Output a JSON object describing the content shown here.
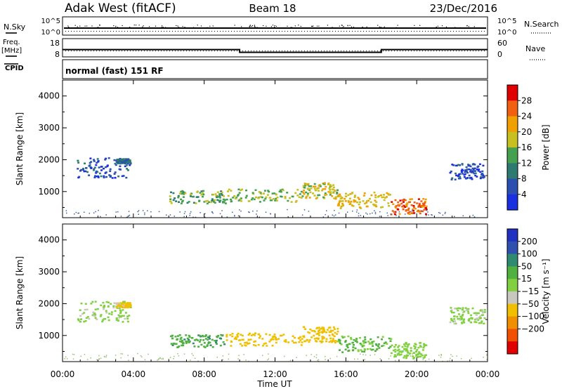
{
  "header": {
    "station": "Adak West (fitACF)",
    "beam": "Beam 18",
    "date": "23/Dec/2016"
  },
  "strip_labels": {
    "nsky": "N.Sky",
    "nsearch": "N.Search",
    "nsky_hi": "10^5",
    "nsky_lo": "10^0",
    "nsearch_hi": "10^5",
    "nsearch_lo": "10^0",
    "freq_label_1": "Freq.",
    "freq_label_2": "[MHz]",
    "freq_hi": "18",
    "freq_lo": "8",
    "nave_label": "Nave",
    "nave_hi": "60",
    "nave_lo": "0",
    "cpid_label": "CPID",
    "cpid_value": "normal (fast) 151 RF"
  },
  "chart_data": {
    "type": "heatmap",
    "x_ticks": [
      "00:00",
      "04:00",
      "08:00",
      "12:00",
      "16:00",
      "20:00",
      "00:00"
    ],
    "xlabel": "Time UT",
    "xlim_hours": [
      0,
      24
    ],
    "frequency_mhz": [
      {
        "from_hour": 0,
        "to_hour": 10,
        "value": 12
      },
      {
        "from_hour": 10,
        "to_hour": 18,
        "value": 10.5
      },
      {
        "from_hour": 18,
        "to_hour": 24,
        "value": 12
      }
    ],
    "panels": [
      {
        "name": "power",
        "ylabel": "Slant Range [km]",
        "y_ticks": [
          1000,
          2000,
          3000,
          4000
        ],
        "ylim_km": [
          180,
          4500
        ],
        "colorbar_label": "Power [dB]",
        "colorbar_ticks": [
          "4",
          "8",
          "12",
          "16",
          "20",
          "24",
          "28"
        ],
        "colorbar_colors": [
          "#1a2fe0",
          "#2a4fb0",
          "#2e7a70",
          "#45a050",
          "#c8c020",
          "#f0a000",
          "#f06010",
          "#e00000"
        ]
      },
      {
        "name": "velocity",
        "ylabel": "Slant Range [km]",
        "y_ticks": [
          1000,
          2000,
          3000,
          4000
        ],
        "ylim_km": [
          180,
          4500
        ],
        "colorbar_label": "Velocity [m s⁻¹]",
        "colorbar_ticks": [
          "200",
          "100",
          "50",
          "15",
          "−15",
          "−50",
          "−100",
          "−200"
        ],
        "colorbar_colors": [
          "#2030c0",
          "#3050b0",
          "#2e8a70",
          "#50b040",
          "#80d040",
          "#c8c8c0",
          "#f0c000",
          "#f09000",
          "#f05000",
          "#e00000"
        ]
      }
    ],
    "echo_regions": [
      {
        "t0": 0.8,
        "t1": 3.8,
        "r0": 1450,
        "r1": 2100,
        "power": 6,
        "velocity": -5
      },
      {
        "t0": 3.0,
        "t1": 3.8,
        "r0": 1900,
        "r1": 2050,
        "power": 8,
        "velocity": -60
      },
      {
        "t0": 6.0,
        "t1": 9.2,
        "r0": 650,
        "r1": 1050,
        "power": 14,
        "velocity": 40
      },
      {
        "t0": 9.2,
        "t1": 13.5,
        "r0": 700,
        "r1": 1100,
        "power": 16,
        "velocity": -70
      },
      {
        "t0": 13.5,
        "t1": 15.5,
        "r0": 800,
        "r1": 1300,
        "power": 18,
        "velocity": -80
      },
      {
        "t0": 15.5,
        "t1": 18.5,
        "r0": 500,
        "r1": 1000,
        "power": 20,
        "velocity": 20
      },
      {
        "t0": 18.5,
        "t1": 20.5,
        "r0": 300,
        "r1": 800,
        "power": 26,
        "velocity": 0
      },
      {
        "t0": 21.8,
        "t1": 23.8,
        "r0": 1400,
        "r1": 1900,
        "power": 5,
        "velocity": -5
      }
    ]
  }
}
